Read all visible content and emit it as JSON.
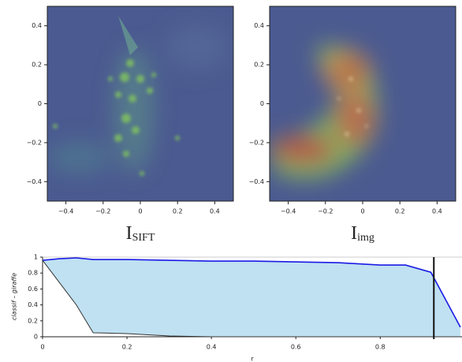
{
  "chart_data": [
    {
      "type": "image",
      "title": "I",
      "title_sub": "SIFT",
      "xlim": [
        -0.5,
        0.5
      ],
      "ylim": [
        -0.5,
        0.5
      ],
      "xticks": [
        {
          "value": -0.4,
          "label": "−0.4"
        },
        {
          "value": -0.2,
          "label": "−0.2"
        },
        0,
        0.2,
        0.4
      ],
      "yticks": [
        {
          "value": -0.4,
          "label": "−0.4"
        },
        {
          "value": -0.2,
          "label": "−0.2"
        },
        0,
        0.2,
        0.4
      ]
    },
    {
      "type": "image",
      "title": "I",
      "title_sub": "img",
      "xlim": [
        -0.5,
        0.5
      ],
      "ylim": [
        -0.5,
        0.5
      ],
      "xticks": [
        {
          "value": -0.4,
          "label": "−0.4"
        },
        {
          "value": -0.2,
          "label": "−0.2"
        },
        0,
        0.2,
        0.4
      ],
      "yticks": [
        {
          "value": -0.4,
          "label": "−0.4"
        },
        {
          "value": -0.2,
          "label": "−0.2"
        },
        0,
        0.2,
        0.4
      ]
    },
    {
      "type": "line",
      "ylabel": "classif – giraffe",
      "xlabel": "r",
      "x": [
        0,
        0.04,
        0.08,
        0.12,
        0.2,
        0.3,
        0.4,
        0.5,
        0.6,
        0.7,
        0.8,
        0.86,
        0.92,
        0.99
      ],
      "series": [
        {
          "color": "#1a1ae6",
          "values": [
            0.96,
            0.98,
            0.99,
            0.97,
            0.97,
            0.96,
            0.95,
            0.95,
            0.94,
            0.93,
            0.9,
            0.9,
            0.81,
            0.12
          ]
        },
        {
          "color": "#333333",
          "values": [
            0.96,
            0.68,
            0.4,
            0.05,
            0.04,
            0.01,
            0,
            0,
            0,
            0,
            0,
            0,
            0,
            0
          ]
        }
      ],
      "fill_color": "#bfe1f1",
      "marker_x": 0.927,
      "xlim": [
        0,
        0.99
      ],
      "ylim": [
        0,
        1
      ],
      "xticks": [
        0,
        0.2,
        0.4,
        0.6,
        0.8
      ],
      "yticks": [
        0,
        0.2,
        0.4,
        0.6,
        0.8,
        1
      ]
    }
  ]
}
